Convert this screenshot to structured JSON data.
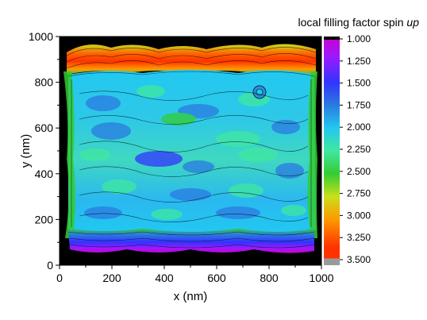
{
  "chart_data": {
    "type": "heatmap",
    "title": "local filling factor spin up",
    "title_parts": {
      "main": "local filling factor spin ",
      "italic": "up"
    },
    "xlabel": "x (nm)",
    "ylabel": "y (nm)",
    "xlim": [
      0,
      1000
    ],
    "ylim": [
      0,
      1000
    ],
    "x_ticks": [
      "0",
      "200",
      "400",
      "600",
      "800",
      "1000"
    ],
    "y_ticks": [
      "0",
      "200",
      "400",
      "600",
      "800",
      "1000"
    ],
    "colorbar": {
      "range": [
        1.0,
        3.5
      ],
      "tick_labels": [
        "1.000",
        "1.250",
        "1.500",
        "1.750",
        "2.000",
        "2.250",
        "2.500",
        "2.750",
        "3.000",
        "3.250",
        "3.500"
      ],
      "color_stops": [
        "#cc00cc",
        "#9a1aff",
        "#3333ff",
        "#2a7be0",
        "#22c8f0",
        "#3fe8a0",
        "#33cc33",
        "#c8e01a",
        "#ff9900",
        "#ff3300",
        "#9a9a9a"
      ]
    },
    "outside_color": "#000000",
    "regions": [
      {
        "name": "top edge strip",
        "y_range": [
          880,
          950
        ],
        "value_range": [
          2.6,
          3.3
        ]
      },
      {
        "name": "bottom edge strip",
        "y_range": [
          70,
          130
        ],
        "value_range": [
          1.1,
          1.5
        ]
      },
      {
        "name": "bulk interior",
        "x_range": [
          80,
          920
        ],
        "y_range": [
          140,
          830
        ],
        "value_range": [
          1.6,
          2.3
        ]
      },
      {
        "name": "left and right edge rims",
        "value_range": [
          2.3,
          2.7
        ]
      }
    ]
  }
}
